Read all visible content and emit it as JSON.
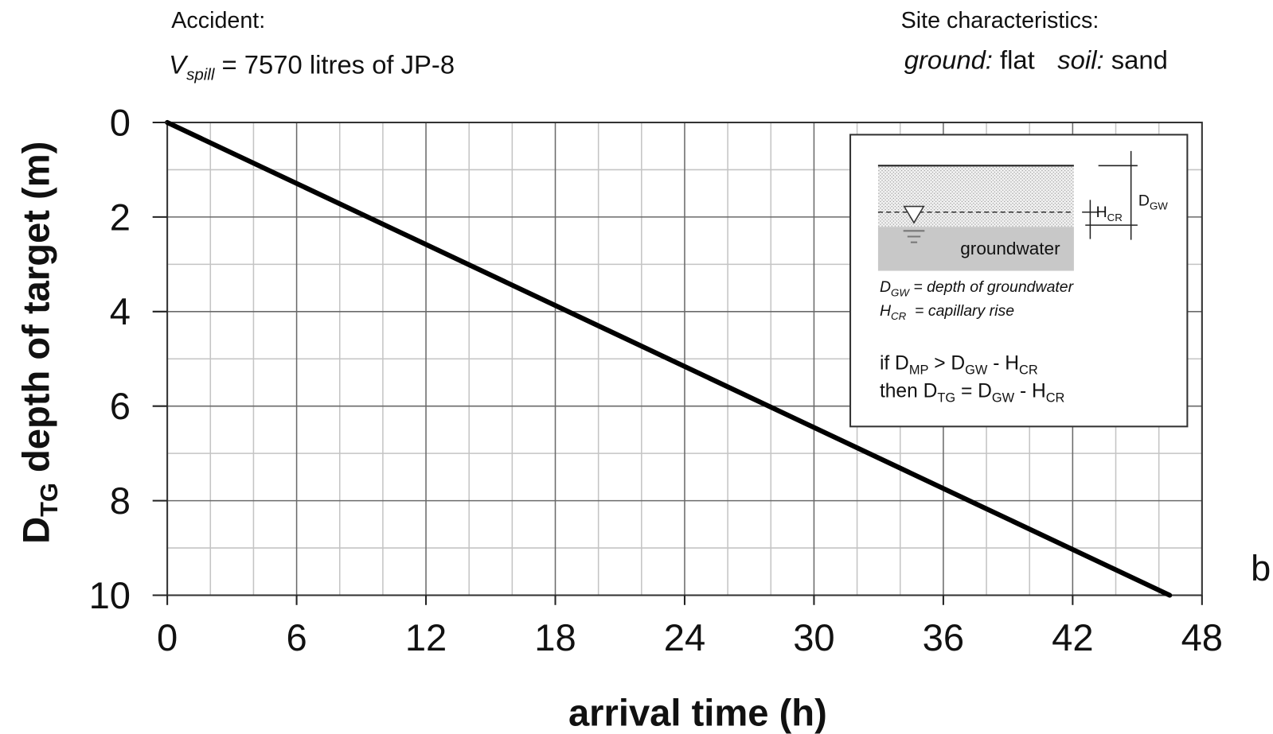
{
  "chart_data": {
    "type": "line",
    "header": {
      "accident": "Accident:",
      "spill": [
        "V",
        "spill",
        " = 7570 litres of JP-8"
      ],
      "site": "Site characteristics:",
      "site_detail": [
        "ground:",
        " flat  ",
        "soil:",
        " sand"
      ]
    },
    "panel_label": "b",
    "xlabel": "arrival time (h)",
    "ylabel": [
      "D",
      "TG",
      " depth of target (m)"
    ],
    "x": [
      0,
      46.5
    ],
    "values": [
      0,
      10
    ],
    "color": "#000000",
    "xlim": [
      0,
      48
    ],
    "xticks": [
      0,
      6,
      12,
      18,
      24,
      30,
      36,
      42,
      48
    ],
    "xminor": [
      2,
      4,
      8,
      10,
      14,
      16,
      20,
      22,
      26,
      28,
      32,
      34,
      38,
      40,
      44,
      46
    ],
    "ylim": [
      10,
      0
    ],
    "yticks": [
      0,
      2,
      4,
      6,
      8,
      10
    ],
    "yminor": [
      1,
      3,
      5,
      7,
      9
    ],
    "grid": true,
    "inset": {
      "groundwater": "groundwater",
      "hcr": [
        "H",
        "CR"
      ],
      "dgw": [
        "D",
        "GW"
      ],
      "def_dgw": [
        "D",
        "GW",
        " = depth of groundwater"
      ],
      "def_hcr": [
        "H",
        "CR",
        "  = capillary rise"
      ],
      "rule_if": [
        "if D",
        "MP",
        " > D",
        "GW",
        " - H",
        "CR"
      ],
      "rule_then": [
        "then D",
        "TG",
        " = D",
        "GW",
        " - H",
        "CR"
      ]
    }
  }
}
